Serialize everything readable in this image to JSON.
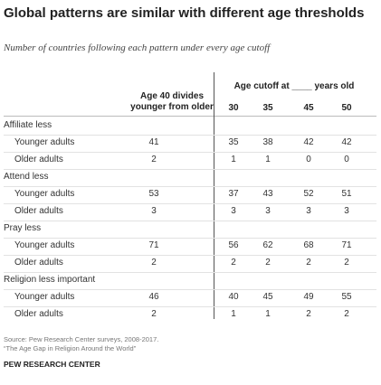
{
  "title": "Global patterns are similar with different age thresholds",
  "subtitle": "Number of countries following each pattern under every age cutoff",
  "headers": {
    "age40": "Age 40 divides younger from older",
    "cutoff_label": "Age cutoff at ____ years old",
    "cutoffs": [
      "30",
      "35",
      "45",
      "50"
    ]
  },
  "rows": [
    {
      "label": "Affiliate less",
      "type": "cat"
    },
    {
      "label": "Younger adults",
      "type": "sub",
      "age40": "41",
      "vals": [
        "35",
        "38",
        "42",
        "42"
      ]
    },
    {
      "label": "Older adults",
      "type": "sub",
      "age40": "2",
      "vals": [
        "1",
        "1",
        "0",
        "0"
      ]
    },
    {
      "label": "Attend less",
      "type": "cat"
    },
    {
      "label": "Younger adults",
      "type": "sub",
      "age40": "53",
      "vals": [
        "37",
        "43",
        "52",
        "51"
      ]
    },
    {
      "label": "Older adults",
      "type": "sub",
      "age40": "3",
      "vals": [
        "3",
        "3",
        "3",
        "3"
      ]
    },
    {
      "label": "Pray less",
      "type": "cat"
    },
    {
      "label": "Younger adults",
      "type": "sub",
      "age40": "71",
      "vals": [
        "56",
        "62",
        "68",
        "71"
      ]
    },
    {
      "label": "Older adults",
      "type": "sub",
      "age40": "2",
      "vals": [
        "2",
        "2",
        "2",
        "2"
      ]
    },
    {
      "label": "Religion less important",
      "type": "cat"
    },
    {
      "label": "Younger adults",
      "type": "sub",
      "age40": "46",
      "vals": [
        "40",
        "45",
        "49",
        "55"
      ]
    },
    {
      "label": "Older adults",
      "type": "sub",
      "age40": "2",
      "vals": [
        "1",
        "1",
        "2",
        "2"
      ]
    }
  ],
  "source_line1": "Source: Pew Research Center surveys, 2008-2017.",
  "source_line2": "“The Age Gap in Religion Around the World”",
  "organization": "PEW RESEARCH CENTER"
}
